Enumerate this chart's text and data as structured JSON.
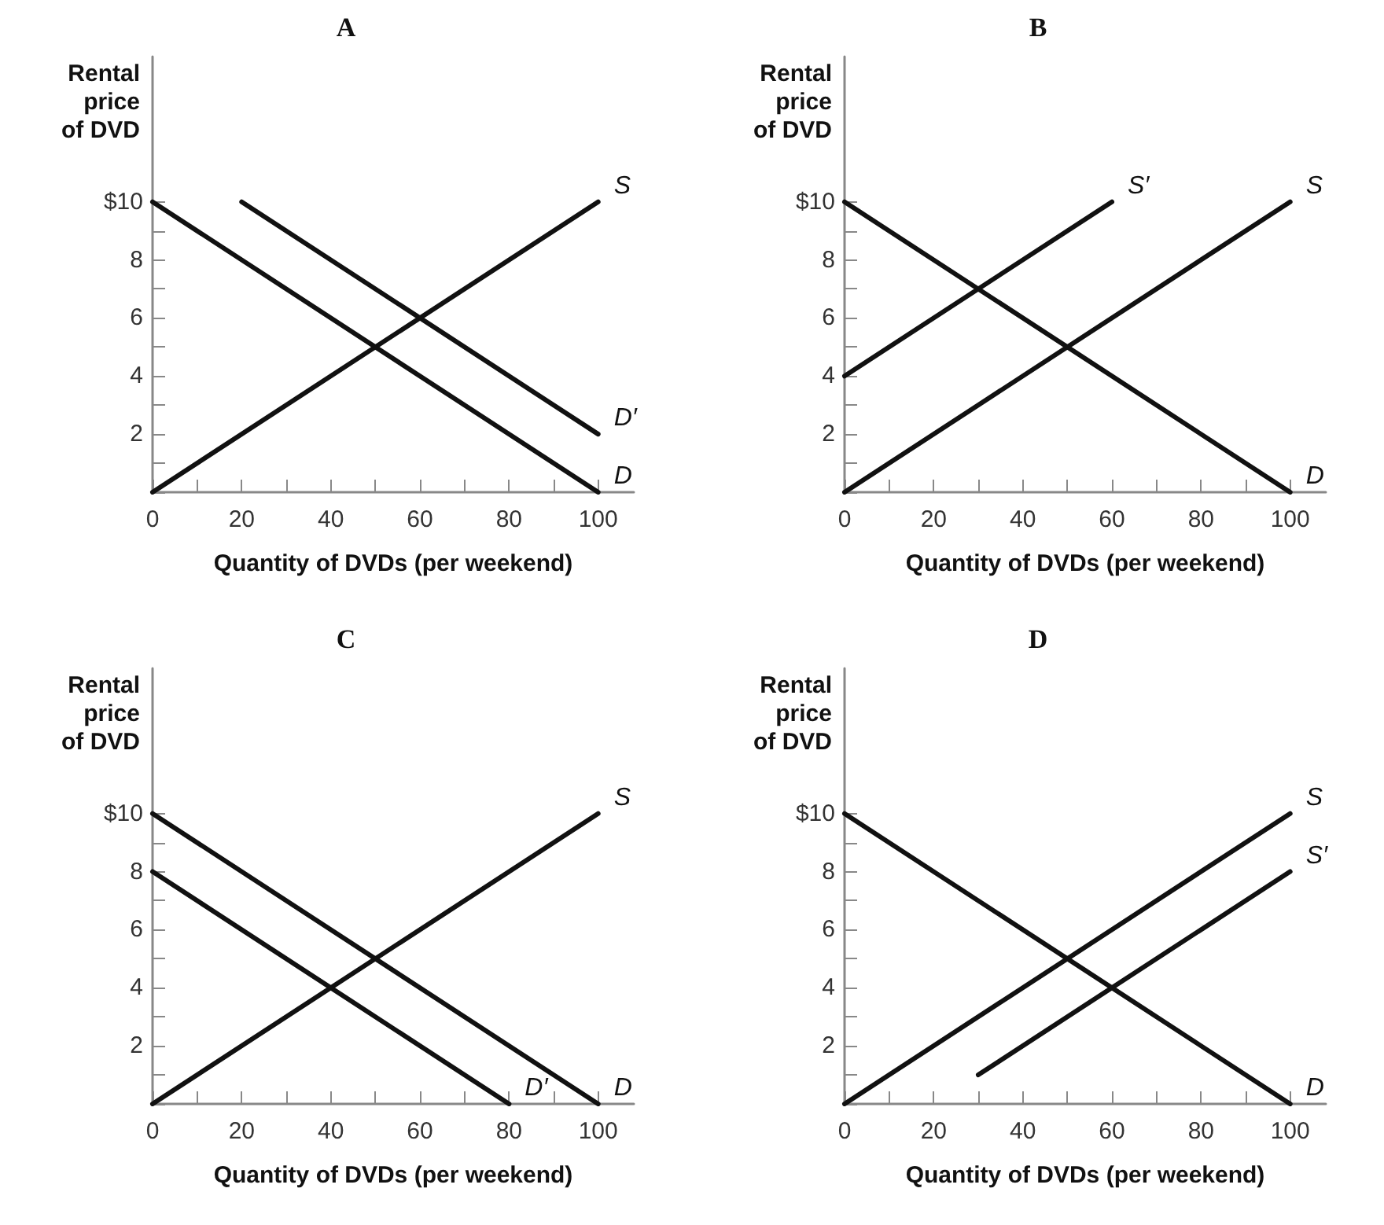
{
  "chart_data": [
    {
      "type": "line",
      "title": "A",
      "xlabel": "Quantity of DVDs (per weekend)",
      "ylabel": "Rental\nprice\nof DVD",
      "xlim": [
        0,
        108
      ],
      "ylim": [
        0,
        15
      ],
      "xticks": [
        {
          "value": 0,
          "label": "0"
        },
        {
          "value": 10,
          "label": null
        },
        20,
        {
          "value": 30,
          "label": null
        },
        40,
        {
          "value": 50,
          "label": null
        },
        60,
        {
          "value": 70,
          "label": null
        },
        80,
        {
          "value": 90,
          "label": null
        },
        100
      ],
      "yticks": [
        {
          "value": 0,
          "label": null
        },
        {
          "value": 1,
          "label": null
        },
        2,
        {
          "value": 3,
          "label": null
        },
        4,
        {
          "value": 5,
          "label": null
        },
        6,
        {
          "value": 7,
          "label": null
        },
        8,
        {
          "value": 9,
          "label": null
        },
        {
          "value": 10,
          "label": "$10"
        }
      ],
      "grid": false,
      "legend": false,
      "marker": "none",
      "line_style": "solid",
      "series": [
        {
          "name": "S",
          "color": "#111111",
          "x": [
            0,
            100
          ],
          "values": [
            0,
            10
          ]
        },
        {
          "name": "D′",
          "color": "#111111",
          "x": [
            20,
            100
          ],
          "values": [
            10,
            2
          ]
        },
        {
          "name": "D",
          "color": "#111111",
          "x": [
            0,
            100
          ],
          "values": [
            10,
            0
          ]
        }
      ]
    },
    {
      "type": "line",
      "title": "B",
      "xlabel": "Quantity of DVDs (per weekend)",
      "ylabel": "Rental\nprice\nof DVD",
      "xlim": [
        0,
        108
      ],
      "ylim": [
        0,
        15
      ],
      "xticks": [
        {
          "value": 0,
          "label": "0"
        },
        {
          "value": 10,
          "label": null
        },
        20,
        {
          "value": 30,
          "label": null
        },
        40,
        {
          "value": 50,
          "label": null
        },
        60,
        {
          "value": 70,
          "label": null
        },
        80,
        {
          "value": 90,
          "label": null
        },
        100
      ],
      "yticks": [
        {
          "value": 0,
          "label": null
        },
        {
          "value": 1,
          "label": null
        },
        2,
        {
          "value": 3,
          "label": null
        },
        4,
        {
          "value": 5,
          "label": null
        },
        6,
        {
          "value": 7,
          "label": null
        },
        8,
        {
          "value": 9,
          "label": null
        },
        {
          "value": 10,
          "label": "$10"
        }
      ],
      "grid": false,
      "legend": false,
      "marker": "none",
      "line_style": "solid",
      "series": [
        {
          "name": "S′",
          "color": "#111111",
          "x": [
            0,
            60
          ],
          "values": [
            4,
            10
          ]
        },
        {
          "name": "S",
          "color": "#111111",
          "x": [
            0,
            100
          ],
          "values": [
            0,
            10
          ]
        },
        {
          "name": "D",
          "color": "#111111",
          "x": [
            0,
            100
          ],
          "values": [
            10,
            0
          ]
        }
      ]
    },
    {
      "type": "line",
      "title": "C",
      "xlabel": "Quantity of DVDs (per weekend)",
      "ylabel": "Rental\nprice\nof DVD",
      "xlim": [
        0,
        108
      ],
      "ylim": [
        0,
        15
      ],
      "xticks": [
        {
          "value": 0,
          "label": "0"
        },
        {
          "value": 10,
          "label": null
        },
        20,
        {
          "value": 30,
          "label": null
        },
        40,
        {
          "value": 50,
          "label": null
        },
        60,
        {
          "value": 70,
          "label": null
        },
        80,
        {
          "value": 90,
          "label": null
        },
        100
      ],
      "yticks": [
        {
          "value": 0,
          "label": null
        },
        {
          "value": 1,
          "label": null
        },
        2,
        {
          "value": 3,
          "label": null
        },
        4,
        {
          "value": 5,
          "label": null
        },
        6,
        {
          "value": 7,
          "label": null
        },
        8,
        {
          "value": 9,
          "label": null
        },
        {
          "value": 10,
          "label": "$10"
        }
      ],
      "grid": false,
      "legend": false,
      "marker": "none",
      "line_style": "solid",
      "series": [
        {
          "name": "S",
          "color": "#111111",
          "x": [
            0,
            100
          ],
          "values": [
            0,
            10
          ]
        },
        {
          "name": "D′",
          "color": "#111111",
          "x": [
            0,
            80
          ],
          "values": [
            8,
            0
          ]
        },
        {
          "name": "D",
          "color": "#111111",
          "x": [
            0,
            100
          ],
          "values": [
            10,
            0
          ]
        }
      ]
    },
    {
      "type": "line",
      "title": "D",
      "xlabel": "Quantity of DVDs (per weekend)",
      "ylabel": "Rental\nprice\nof DVD",
      "xlim": [
        0,
        108
      ],
      "ylim": [
        0,
        15
      ],
      "xticks": [
        {
          "value": 0,
          "label": "0"
        },
        {
          "value": 10,
          "label": null
        },
        20,
        {
          "value": 30,
          "label": null
        },
        40,
        {
          "value": 50,
          "label": null
        },
        60,
        {
          "value": 70,
          "label": null
        },
        80,
        {
          "value": 90,
          "label": null
        },
        100
      ],
      "yticks": [
        {
          "value": 0,
          "label": null
        },
        {
          "value": 1,
          "label": null
        },
        2,
        {
          "value": 3,
          "label": null
        },
        4,
        {
          "value": 5,
          "label": null
        },
        6,
        {
          "value": 7,
          "label": null
        },
        8,
        {
          "value": 9,
          "label": null
        },
        {
          "value": 10,
          "label": "$10"
        }
      ],
      "grid": false,
      "legend": false,
      "marker": "none",
      "line_style": "solid",
      "series": [
        {
          "name": "S",
          "color": "#111111",
          "x": [
            0,
            100
          ],
          "values": [
            0,
            10
          ]
        },
        {
          "name": "S′",
          "color": "#111111",
          "x": [
            30,
            100
          ],
          "values": [
            1,
            8
          ]
        },
        {
          "name": "D",
          "color": "#111111",
          "x": [
            0,
            100
          ],
          "values": [
            10,
            0
          ]
        }
      ]
    }
  ]
}
